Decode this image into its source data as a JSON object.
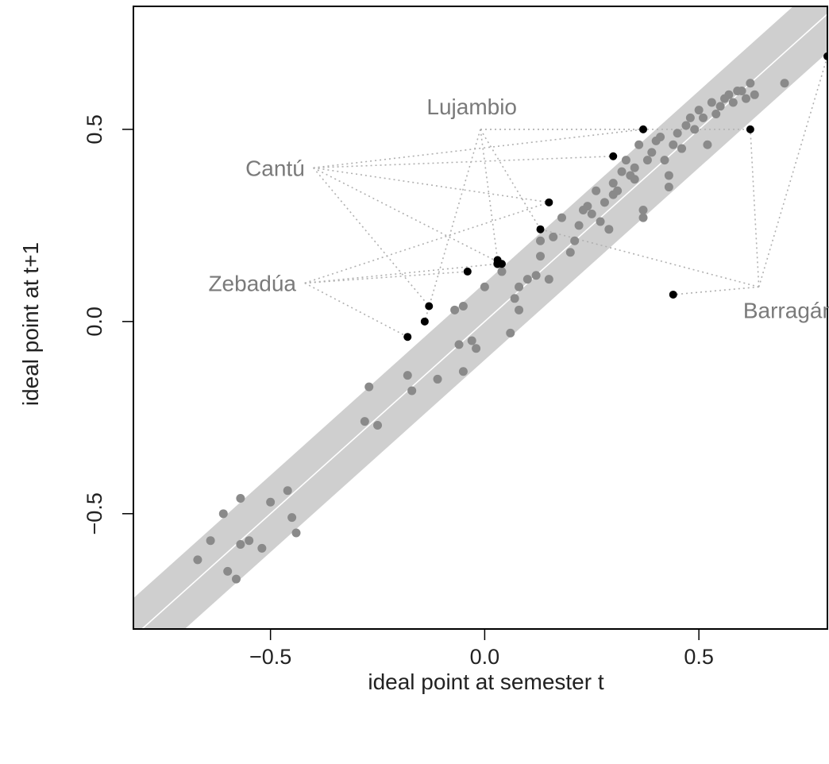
{
  "chart_data": {
    "type": "scatter",
    "title": "",
    "xlabel": "ideal point at semester t",
    "ylabel": "ideal point at t+1",
    "xlim": [
      -0.82,
      0.8
    ],
    "ylim": [
      -0.8,
      0.82
    ],
    "xticks": [
      -0.5,
      0.0,
      0.5
    ],
    "yticks": [
      -0.5,
      0.0,
      0.5
    ],
    "xtick_labels": [
      "−0.5",
      "0.0",
      "0.5"
    ],
    "ytick_labels": [
      "−0.5",
      "0.0",
      "0.5"
    ],
    "grid": false,
    "reference_line": {
      "slope": 1,
      "intercept": 0
    },
    "band_halfwidth": 0.1,
    "colors": {
      "band": "#cfcfcf",
      "reference_line": "#ffffff",
      "gray_points": "#8a8a8a",
      "black_points": "#000000",
      "connector": "#b0b0b0"
    },
    "series": [
      {
        "color": "#8a8a8a",
        "points": [
          [
            -0.67,
            -0.62
          ],
          [
            -0.64,
            -0.57
          ],
          [
            -0.61,
            -0.5
          ],
          [
            -0.57,
            -0.46
          ],
          [
            -0.57,
            -0.58
          ],
          [
            -0.55,
            -0.57
          ],
          [
            -0.6,
            -0.65
          ],
          [
            -0.58,
            -0.67
          ],
          [
            -0.52,
            -0.59
          ],
          [
            -0.5,
            -0.47
          ],
          [
            -0.46,
            -0.44
          ],
          [
            -0.45,
            -0.51
          ],
          [
            -0.44,
            -0.55
          ],
          [
            -0.27,
            -0.17
          ],
          [
            -0.28,
            -0.26
          ],
          [
            -0.25,
            -0.27
          ],
          [
            -0.18,
            -0.14
          ],
          [
            -0.17,
            -0.18
          ],
          [
            -0.11,
            -0.15
          ],
          [
            -0.06,
            -0.06
          ],
          [
            -0.05,
            -0.13
          ],
          [
            -0.03,
            -0.05
          ],
          [
            -0.02,
            -0.07
          ],
          [
            -0.07,
            0.03
          ],
          [
            -0.05,
            0.04
          ],
          [
            0.0,
            0.09
          ],
          [
            0.03,
            0.15
          ],
          [
            0.04,
            0.13
          ],
          [
            0.06,
            -0.03
          ],
          [
            0.07,
            0.06
          ],
          [
            0.08,
            0.03
          ],
          [
            0.08,
            0.09
          ],
          [
            0.1,
            0.11
          ],
          [
            0.12,
            0.12
          ],
          [
            0.13,
            0.17
          ],
          [
            0.13,
            0.21
          ],
          [
            0.15,
            0.11
          ],
          [
            0.16,
            0.22
          ],
          [
            0.18,
            0.27
          ],
          [
            0.2,
            0.18
          ],
          [
            0.21,
            0.21
          ],
          [
            0.22,
            0.25
          ],
          [
            0.23,
            0.29
          ],
          [
            0.24,
            0.3
          ],
          [
            0.25,
            0.28
          ],
          [
            0.26,
            0.34
          ],
          [
            0.27,
            0.26
          ],
          [
            0.28,
            0.31
          ],
          [
            0.29,
            0.24
          ],
          [
            0.3,
            0.36
          ],
          [
            0.3,
            0.33
          ],
          [
            0.31,
            0.34
          ],
          [
            0.32,
            0.39
          ],
          [
            0.33,
            0.42
          ],
          [
            0.34,
            0.38
          ],
          [
            0.35,
            0.4
          ],
          [
            0.35,
            0.37
          ],
          [
            0.36,
            0.46
          ],
          [
            0.37,
            0.29
          ],
          [
            0.37,
            0.27
          ],
          [
            0.38,
            0.42
          ],
          [
            0.39,
            0.44
          ],
          [
            0.4,
            0.47
          ],
          [
            0.41,
            0.48
          ],
          [
            0.42,
            0.42
          ],
          [
            0.43,
            0.38
          ],
          [
            0.43,
            0.35
          ],
          [
            0.44,
            0.46
          ],
          [
            0.45,
            0.49
          ],
          [
            0.46,
            0.45
          ],
          [
            0.47,
            0.51
          ],
          [
            0.48,
            0.53
          ],
          [
            0.49,
            0.5
          ],
          [
            0.5,
            0.55
          ],
          [
            0.51,
            0.53
          ],
          [
            0.52,
            0.46
          ],
          [
            0.53,
            0.57
          ],
          [
            0.54,
            0.54
          ],
          [
            0.55,
            0.56
          ],
          [
            0.56,
            0.58
          ],
          [
            0.57,
            0.59
          ],
          [
            0.58,
            0.57
          ],
          [
            0.59,
            0.6
          ],
          [
            0.6,
            0.6
          ],
          [
            0.61,
            0.58
          ],
          [
            0.62,
            0.62
          ],
          [
            0.63,
            0.59
          ],
          [
            0.7,
            0.62
          ]
        ]
      },
      {
        "color": "#000000",
        "points": [
          [
            -0.18,
            -0.04
          ],
          [
            -0.14,
            0.0
          ],
          [
            -0.13,
            0.04
          ],
          [
            -0.04,
            0.13
          ],
          [
            0.03,
            0.16
          ],
          [
            0.03,
            0.15
          ],
          [
            0.04,
            0.15
          ],
          [
            0.13,
            0.24
          ],
          [
            0.15,
            0.31
          ],
          [
            0.3,
            0.43
          ],
          [
            0.37,
            0.5
          ],
          [
            0.44,
            0.07
          ],
          [
            0.62,
            0.5
          ],
          [
            0.8,
            0.69
          ]
        ]
      }
    ],
    "annotations": [
      {
        "text": "Lujambio",
        "x": -0.03,
        "y": 0.56,
        "anchor": "middle",
        "targets": [
          [
            -0.14,
            0.0
          ],
          [
            0.03,
            0.16
          ],
          [
            0.13,
            0.24
          ],
          [
            0.37,
            0.5
          ],
          [
            0.62,
            0.5
          ]
        ],
        "hub": [
          -0.01,
          0.5
        ]
      },
      {
        "text": "Cantú",
        "x": -0.42,
        "y": 0.4,
        "anchor": "end",
        "targets": [
          [
            -0.13,
            0.04
          ],
          [
            0.04,
            0.15
          ],
          [
            0.15,
            0.31
          ],
          [
            0.3,
            0.43
          ],
          [
            0.37,
            0.5
          ]
        ],
        "hub": [
          -0.4,
          0.4
        ]
      },
      {
        "text": "Zebadúa",
        "x": -0.44,
        "y": 0.1,
        "anchor": "end",
        "targets": [
          [
            -0.18,
            -0.04
          ],
          [
            -0.04,
            0.13
          ],
          [
            0.03,
            0.15
          ],
          [
            0.15,
            0.31
          ]
        ],
        "hub": [
          -0.42,
          0.1
        ]
      },
      {
        "text": "Barragán",
        "x": 0.71,
        "y": 0.03,
        "anchor": "middle",
        "targets": [
          [
            0.44,
            0.07
          ],
          [
            0.62,
            0.5
          ],
          [
            0.8,
            0.69
          ],
          [
            0.13,
            0.24
          ]
        ],
        "hub": [
          0.64,
          0.09
        ]
      }
    ]
  }
}
